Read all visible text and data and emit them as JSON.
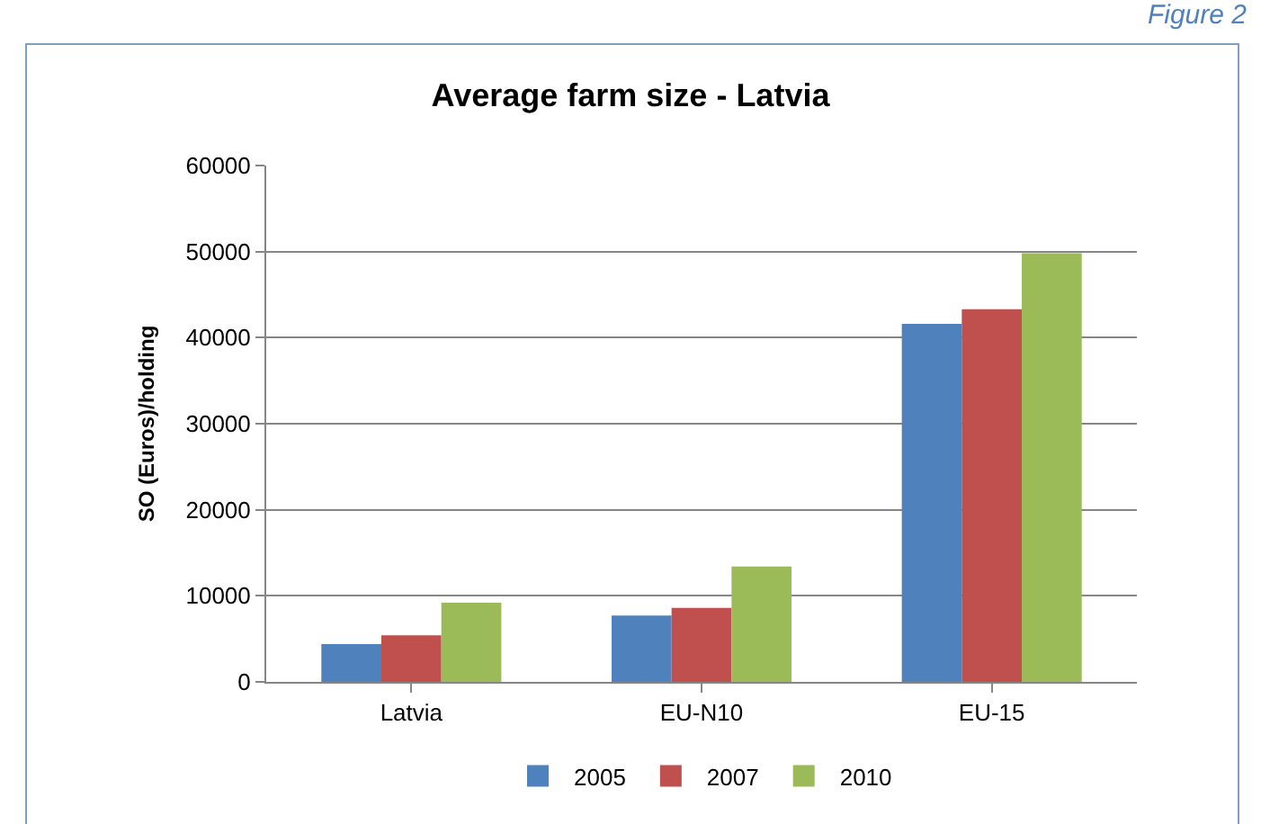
{
  "chart_data": {
    "type": "bar",
    "title": "Average farm size - Latvia",
    "ylabel": "SO (Euros)/holding",
    "annotations": [
      "Figure 2"
    ],
    "categories": [
      "Latvia",
      "EU-N10",
      "EU-15"
    ],
    "series": [
      {
        "name": "2005",
        "color": "#4f81bd",
        "values": [
          4400,
          7700,
          41600
        ]
      },
      {
        "name": "2007",
        "color": "#c0504d",
        "values": [
          5400,
          8600,
          43300
        ]
      },
      {
        "name": "2010",
        "color": "#9bbb59",
        "values": [
          9200,
          13400,
          49800
        ]
      }
    ],
    "ylim": [
      0,
      60000
    ],
    "yticks": [
      0,
      10000,
      20000,
      30000,
      40000,
      50000,
      60000
    ],
    "grid": "y",
    "legend": "bottom"
  }
}
